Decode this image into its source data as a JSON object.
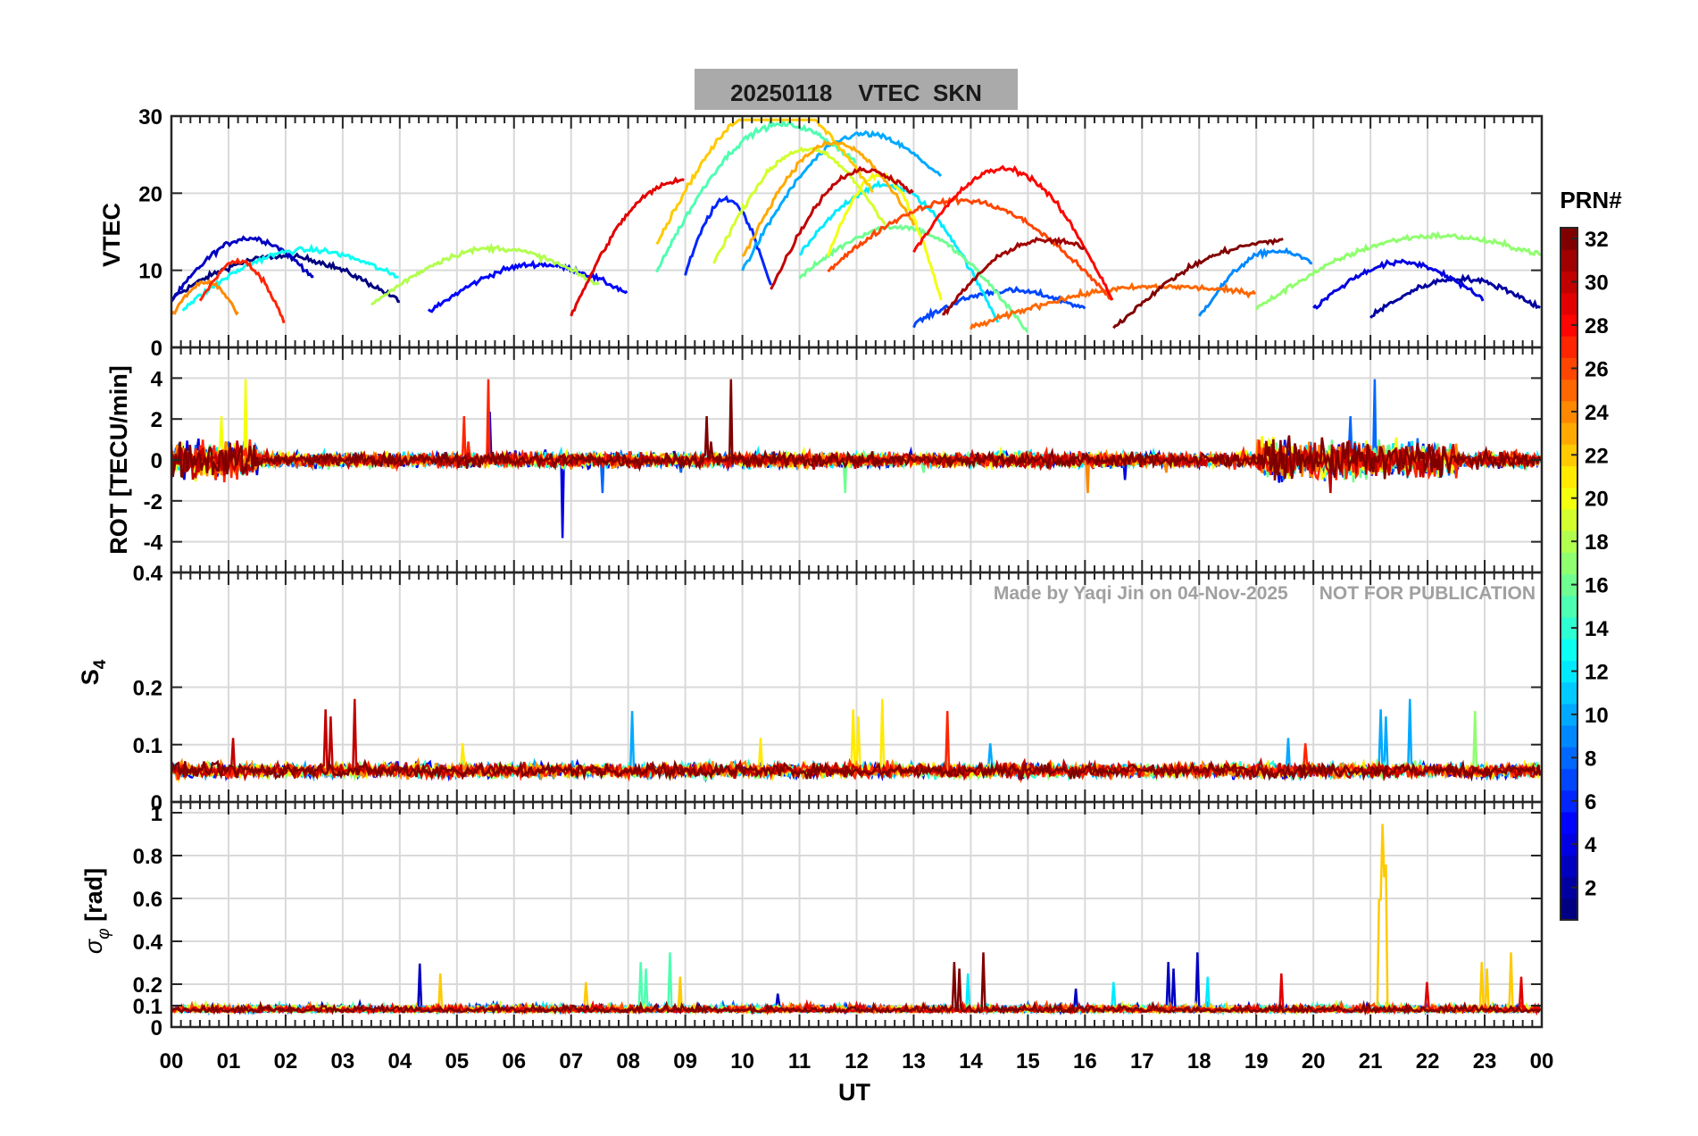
{
  "figure": {
    "title": "20250118    VTEC  SKN",
    "watermark": "Made by Yaqi Jin on 04-Nov-2025      NOT FOR PUBLICATION"
  },
  "chart_data": [
    {
      "type": "line",
      "panel": "vtec",
      "ylabel": "VTEC",
      "ylim": [
        0,
        30
      ],
      "yticks": [
        0,
        10,
        20,
        30
      ],
      "series_prns": [
        1,
        2,
        3,
        4,
        5,
        6,
        7,
        8,
        9,
        10,
        11,
        12,
        13,
        14,
        15,
        16,
        17,
        18,
        19,
        20,
        21,
        22,
        23,
        24,
        25,
        26,
        27,
        28,
        29,
        30,
        31,
        32
      ]
    },
    {
      "type": "line",
      "panel": "rot",
      "ylabel": "ROT [TECU/min]",
      "ylim": [
        -5.5,
        5.5
      ],
      "yticks": [
        -4,
        -2,
        0,
        2,
        4
      ]
    },
    {
      "type": "line",
      "panel": "s4",
      "ylabel": "S4",
      "ylim": [
        0,
        0.4
      ],
      "yticks": [
        0,
        0.1,
        0.2
      ],
      "top_tick_label": "0.4"
    },
    {
      "type": "line",
      "panel": "sigma_phi",
      "ylabel": "σφ [rad]",
      "ylim": [
        0,
        1.05
      ],
      "yticks": [
        0,
        0.1,
        0.2,
        0.4,
        0.6,
        0.8,
        1
      ]
    }
  ],
  "xaxis": {
    "label": "UT",
    "xlim": [
      0,
      24
    ],
    "tick_labels": [
      "00",
      "01",
      "02",
      "03",
      "04",
      "05",
      "06",
      "07",
      "08",
      "09",
      "10",
      "11",
      "12",
      "13",
      "14",
      "15",
      "16",
      "17",
      "18",
      "19",
      "20",
      "21",
      "22",
      "23",
      "00"
    ]
  },
  "colorbar": {
    "label": "PRN#",
    "range": [
      1,
      32
    ],
    "tick_labels": [
      "2",
      "4",
      "6",
      "8",
      "10",
      "12",
      "14",
      "16",
      "18",
      "20",
      "22",
      "24",
      "26",
      "28",
      "30",
      "32"
    ]
  }
}
